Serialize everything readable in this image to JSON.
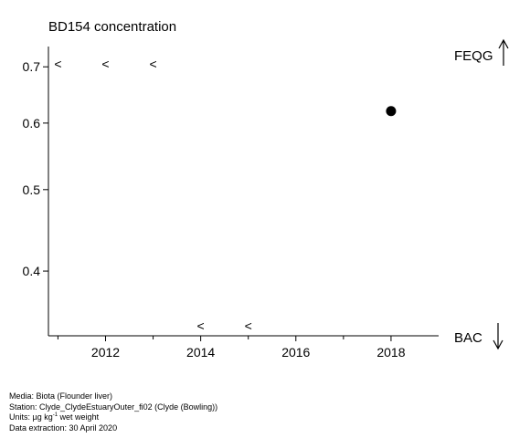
{
  "chart_data": {
    "type": "scatter",
    "title": "BD154 concentration",
    "xlabel": "",
    "ylabel": "",
    "x_scale": "linear",
    "y_scale": "log",
    "xlim": [
      2010.8,
      2019.0
    ],
    "ylim": [
      0.335,
      0.74
    ],
    "x_ticks": [
      2012,
      2014,
      2016,
      2018
    ],
    "x_minor_ticks": [
      2011,
      2013,
      2015,
      2017
    ],
    "y_ticks": [
      0.4,
      0.5,
      0.6,
      0.7
    ],
    "grid": false,
    "points": [
      {
        "x": 2018,
        "y": 0.62,
        "marker": "filled-circle"
      }
    ],
    "less_than_markers": [
      {
        "x": 2011,
        "position": "top",
        "label": "<"
      },
      {
        "x": 2012,
        "position": "top",
        "label": "<"
      },
      {
        "x": 2013,
        "position": "top",
        "label": "<"
      },
      {
        "x": 2014,
        "position": "bottom",
        "label": "<"
      },
      {
        "x": 2015,
        "position": "bottom",
        "label": "<"
      }
    ],
    "reference_lines": [
      {
        "label": "FEQG",
        "direction": "above",
        "icon": "arrow-up-icon"
      },
      {
        "label": "BAC",
        "direction": "below",
        "icon": "arrow-down-icon"
      }
    ],
    "colors": {
      "axis": "#000000",
      "point": "#000000",
      "text": "#000000"
    }
  },
  "footer": {
    "media": "Media: Biota (Flounder liver)",
    "station": "Station: Clyde_ClydeEstuaryOuter_fi02 (Clyde (Bowling))",
    "units_prefix": "Units:  µg kg",
    "units_exponent": "-1",
    "units_suffix": " wet weight",
    "extraction": "Data extraction: 30 April 2020"
  }
}
